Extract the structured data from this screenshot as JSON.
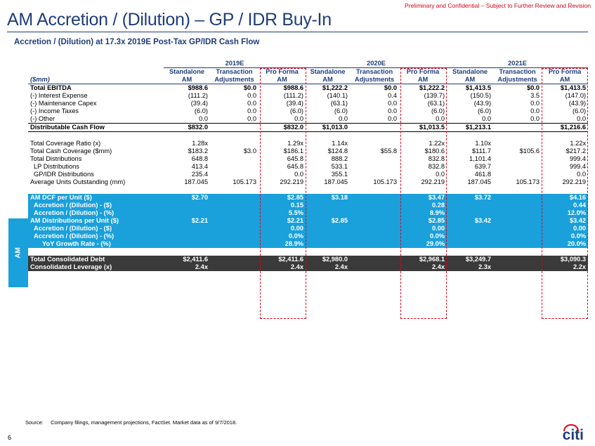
{
  "confidential": "Preliminary and Confidential – Subject to Further Review and Revision",
  "title": "AM Accretion / (Dilution) – GP / IDR Buy-In",
  "subtitle": "Accretion / (Dilution) at 17.3x 2019E Post-Tax GP/IDR Cash Flow",
  "years": [
    "2019E",
    "2020E",
    "2021E"
  ],
  "unit_label": "($mm)",
  "col_headers_1": [
    "Standalone",
    "Transaction",
    "Pro Forma",
    "Standalone",
    "Transaction",
    "Pro Forma",
    "Standalone",
    "Transaction",
    "Pro Forma"
  ],
  "col_headers_2": [
    "AM",
    "Adjustments",
    "AM",
    "AM",
    "Adjustments",
    "AM",
    "AM",
    "Adjustments",
    "AM"
  ],
  "section_label": "AM",
  "rows": [
    {
      "label": "Total EBITDA",
      "v": [
        "$988.6",
        "$0.0",
        "$988.6",
        "$1,222.2",
        "$0.0",
        "$1,222.2",
        "$1,413.5",
        "$0.0",
        "$1,413.5"
      ]
    },
    {
      "label": "(-) Interest Expense",
      "v": [
        "(111.2)",
        "0.0",
        "(111.2)",
        "(140.1)",
        "0.4",
        "(139.7)",
        "(150.5)",
        "3.5",
        "(147.0)"
      ]
    },
    {
      "label": "(-) Maintenance Capex",
      "v": [
        "(39.4)",
        "0.0",
        "(39.4)",
        "(63.1)",
        "0.0",
        "(63.1)",
        "(43.9)",
        "0.0",
        "(43.9)"
      ]
    },
    {
      "label": "(-) Income Taxes",
      "v": [
        "(6.0)",
        "0.0",
        "(6.0)",
        "(6.0)",
        "0.0",
        "(6.0)",
        "(6.0)",
        "0.0",
        "(6.0)"
      ]
    },
    {
      "label": "(-) Other",
      "v": [
        "0.0",
        "0.0",
        "0.0",
        "0.0",
        "0.0",
        "0.0",
        "0.0",
        "0.0",
        "0.0"
      ]
    },
    {
      "label": "Distributable Cash Flow",
      "v": [
        "$832.0",
        "",
        "$832.0",
        "$1,013.0",
        "",
        "$1,013.5",
        "$1,213.1",
        "",
        "$1,216.6"
      ]
    },
    {
      "label": "Total Coverage Ratio (x)",
      "v": [
        "1.28x",
        "",
        "1.29x",
        "1.14x",
        "",
        "1.22x",
        "1.10x",
        "",
        "1.22x"
      ]
    },
    {
      "label": "Total Cash Coverage ($mm)",
      "v": [
        "$183.2",
        "$3.0",
        "$186.1",
        "$124.8",
        "$55.8",
        "$180.6",
        "$111.7",
        "$105.6",
        "$217.2"
      ]
    },
    {
      "label": "Total Distributions",
      "v": [
        "648.8",
        "",
        "645.8",
        "888.2",
        "",
        "832.8",
        "1,101.4",
        "",
        "999.4"
      ]
    },
    {
      "label": "LP Distributions",
      "v": [
        "413.4",
        "",
        "645.8",
        "533.1",
        "",
        "832.8",
        "639.7",
        "",
        "999.4"
      ]
    },
    {
      "label": "GP/IDR Distributions",
      "v": [
        "235.4",
        "",
        "0.0",
        "355.1",
        "",
        "0.0",
        "461.8",
        "",
        "0.0"
      ]
    },
    {
      "label": "Average Units Outstanding (mm)",
      "v": [
        "187.045",
        "105.173",
        "292.219",
        "187.045",
        "105.173",
        "292.219",
        "187.045",
        "105.173",
        "292.219"
      ]
    },
    {
      "label": "AM DCF per Unit ($)",
      "v": [
        "$2.70",
        "",
        "$2.85",
        "$3.18",
        "",
        "$3.47",
        "$3.72",
        "",
        "$4.16"
      ]
    },
    {
      "label": "Accretion / (Dilution) - ($)",
      "v": [
        "",
        "",
        "0.15",
        "",
        "",
        "0.28",
        "",
        "",
        "0.44"
      ]
    },
    {
      "label": "Accretion / (Dilution) - (%)",
      "v": [
        "",
        "",
        "5.5%",
        "",
        "",
        "8.9%",
        "",
        "",
        "12.0%"
      ]
    },
    {
      "label": "AM Distributions per Unit ($)",
      "v": [
        "$2.21",
        "",
        "$2.21",
        "$2.85",
        "",
        "$2.85",
        "$3.42",
        "",
        "$3.42"
      ]
    },
    {
      "label": "Accretion / (Dilution) - ($)",
      "v": [
        "",
        "",
        "0.00",
        "",
        "",
        "0.00",
        "",
        "",
        "0.00"
      ]
    },
    {
      "label": "Accretion / (Dilution) - (%)",
      "v": [
        "",
        "",
        "0.0%",
        "",
        "",
        "0.0%",
        "",
        "",
        "0.0%"
      ]
    },
    {
      "label": "YoY Growth Rate - (%)",
      "v": [
        "",
        "",
        "28.9%",
        "",
        "",
        "29.0%",
        "",
        "",
        "20.0%"
      ]
    },
    {
      "label": "Total Consolidated Debt",
      "v": [
        "$2,411.6",
        "",
        "$2,411.6",
        "$2,980.0",
        "",
        "$2,968.1",
        "$3,249.7",
        "",
        "$3,090.3"
      ]
    },
    {
      "label": "Consolidated Leverage (x)",
      "v": [
        "2.4x",
        "",
        "2.4x",
        "2.4x",
        "",
        "2.4x",
        "2.3x",
        "",
        "2.2x"
      ]
    }
  ],
  "footer": {
    "source_label": "Source:",
    "source_text": "Company filings, management projections, FactSet. Market data as of 9/7/2018."
  },
  "page_number": "6",
  "logo_text": "citi"
}
